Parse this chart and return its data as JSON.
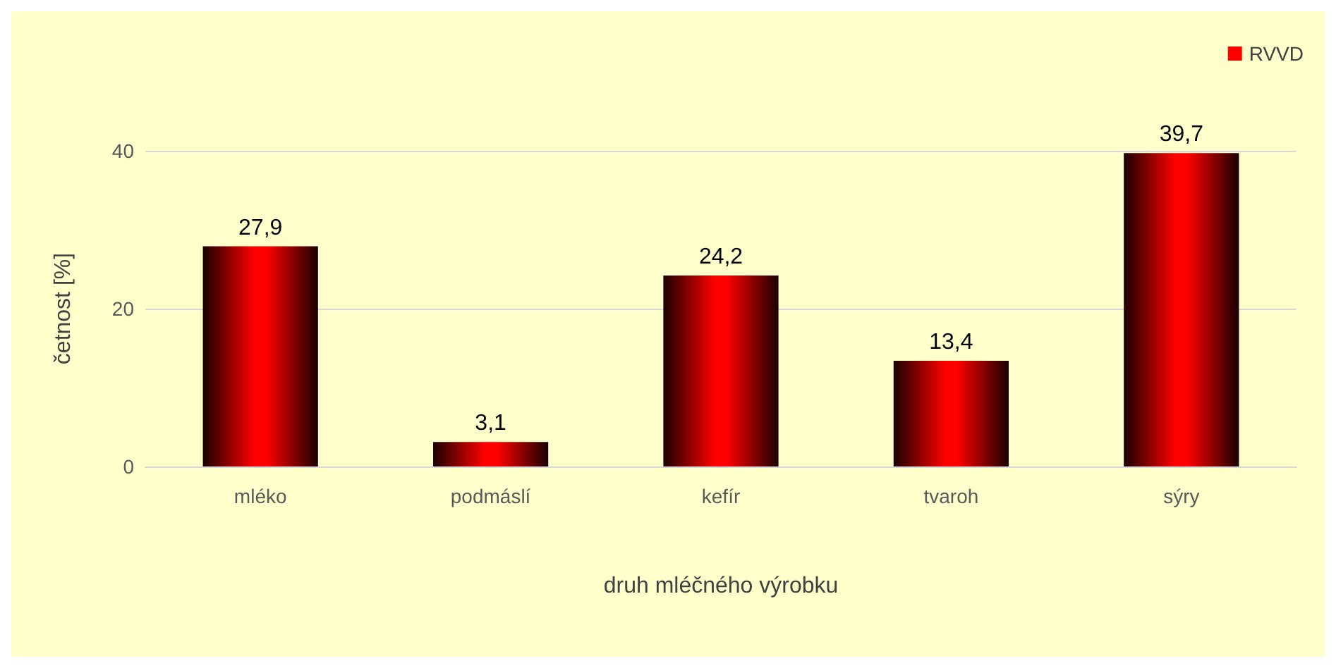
{
  "chart_data": {
    "type": "bar",
    "xlabel": "druh mléčného výrobku",
    "ylabel": "četnost [%]",
    "categories": [
      "mléko",
      "podmáslí",
      "kefír",
      "tvaroh",
      "sýry"
    ],
    "series": [
      {
        "name": "RVVD",
        "color": "#ff0000",
        "values": [
          27.9,
          3.1,
          24.2,
          13.4,
          39.7
        ],
        "value_labels": [
          "27,9",
          "3,1",
          "24,2",
          "13,4",
          "39,7"
        ]
      }
    ],
    "ylim": [
      0,
      40
    ],
    "yticks": [
      0,
      20,
      40
    ],
    "grid": "y",
    "legend": "top right"
  }
}
